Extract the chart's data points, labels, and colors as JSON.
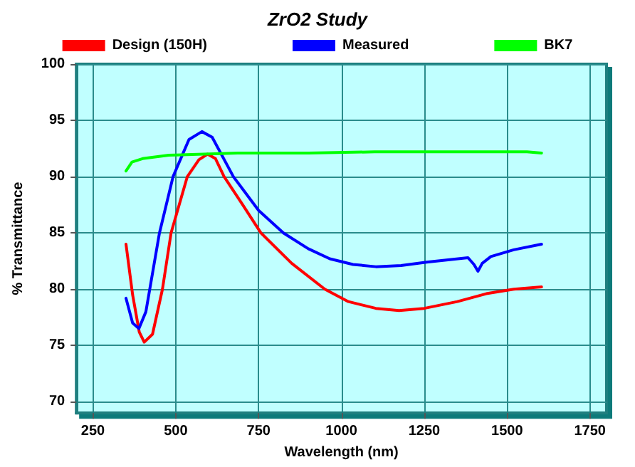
{
  "chart_data": {
    "type": "line",
    "title": "ZrO2 Study",
    "xlabel": "Wavelength (nm)",
    "ylabel": "% Transmittance",
    "xlim": [
      200,
      1800
    ],
    "xticks": [
      250,
      500,
      750,
      1000,
      1250,
      1500,
      1750
    ],
    "ylim": [
      69,
      100
    ],
    "yticks": [
      70,
      75,
      80,
      85,
      90,
      95,
      100
    ],
    "grid": true,
    "legend": "top",
    "marker": "none",
    "line_style": "solid",
    "series": [
      {
        "name": "Design (150H)",
        "color": "#ff0000",
        "x": [
          350,
          370,
          390,
          405,
          430,
          460,
          486,
          535,
          570,
          596,
          620,
          646,
          700,
          757,
          850,
          950,
          1021,
          1104,
          1174,
          1250,
          1350,
          1437,
          1520,
          1604
        ],
        "values": [
          84.0,
          79.5,
          76.2,
          75.3,
          76.0,
          80.0,
          85.0,
          90.0,
          91.5,
          92.0,
          91.6,
          90.0,
          87.6,
          85.0,
          82.3,
          80.0,
          78.9,
          78.3,
          78.1,
          78.3,
          78.9,
          79.6,
          80.0,
          80.2
        ]
      },
      {
        "name": "Measured",
        "color": "#0000ff",
        "x": [
          350,
          370,
          389,
          410,
          451,
          492,
          540,
          579,
          610,
          674,
          750,
          825,
          900,
          965,
          1035,
          1104,
          1180,
          1257,
          1382,
          1400,
          1412,
          1425,
          1451,
          1520,
          1604
        ],
        "values": [
          79.2,
          77.0,
          76.5,
          78.0,
          85.0,
          90.0,
          93.3,
          94.0,
          93.5,
          90.0,
          87.0,
          85.0,
          83.6,
          82.7,
          82.2,
          82.0,
          82.1,
          82.4,
          82.8,
          82.2,
          81.6,
          82.3,
          82.9,
          83.5,
          84.0
        ]
      },
      {
        "name": "BK7",
        "color": "#00ff00",
        "x": [
          350,
          368,
          400,
          479,
          687,
          900,
          1100,
          1300,
          1500,
          1560,
          1604
        ],
        "values": [
          90.5,
          91.3,
          91.6,
          91.9,
          92.1,
          92.1,
          92.2,
          92.2,
          92.2,
          92.2,
          92.1
        ]
      }
    ]
  }
}
